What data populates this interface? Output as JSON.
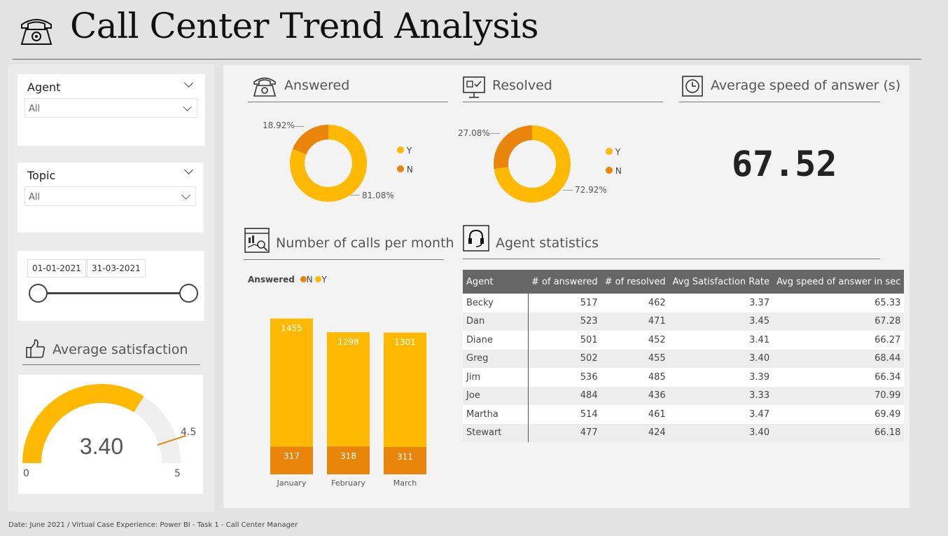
{
  "title": "Call Center Trend Analysis",
  "filters": {
    "agent": {
      "label": "Agent",
      "value": "All"
    },
    "topic": {
      "label": "Topic",
      "value": "All"
    },
    "date_range": {
      "start": "01-01-2021",
      "end": "31-03-2021"
    }
  },
  "satisfaction": {
    "title": "Average satisfaction",
    "value": "3.40",
    "min": "0",
    "max": "5",
    "target": "4.5",
    "fill_value": 3.4,
    "target_value": 4.5,
    "colors": {
      "fill": "#ffb900",
      "track": "#f0efef",
      "target": "#e8850a"
    }
  },
  "answered": {
    "title": "Answered",
    "pct_n": "18.92%",
    "pct_y": "81.08%",
    "legend": [
      "Y",
      "N"
    ]
  },
  "resolved": {
    "title": "Resolved",
    "pct_n": "27.08%",
    "pct_y": "72.92%",
    "legend": [
      "Y",
      "N"
    ]
  },
  "speed": {
    "title": "Average speed of answer (s)",
    "value": "67.52"
  },
  "calls": {
    "title": "Number of calls per month",
    "legend_title": "Answered",
    "legend": [
      "N",
      "Y"
    ]
  },
  "agent_stats": {
    "title": "Agent statistics",
    "columns": [
      "Agent",
      "# of answered",
      "# of resolved",
      "Avg Satisfaction Rate",
      "Avg speed of answer in sec"
    ],
    "rows": [
      [
        "Becky",
        "517",
        "462",
        "3.37",
        "65.33"
      ],
      [
        "Dan",
        "523",
        "471",
        "3.45",
        "67.28"
      ],
      [
        "Diane",
        "501",
        "452",
        "3.41",
        "66.27"
      ],
      [
        "Greg",
        "502",
        "455",
        "3.40",
        "68.44"
      ],
      [
        "Jim",
        "536",
        "485",
        "3.39",
        "66.34"
      ],
      [
        "Joe",
        "484",
        "436",
        "3.33",
        "70.99"
      ],
      [
        "Martha",
        "514",
        "461",
        "3.47",
        "69.49"
      ],
      [
        "Stewart",
        "477",
        "424",
        "3.40",
        "66.18"
      ]
    ]
  },
  "footer": "Date: June 2021 / Virtual Case Experience: Power BI - Task 1 - Call Center Manager",
  "colors": {
    "y": "#ffb900",
    "n": "#e8850a"
  },
  "chart_data": [
    {
      "type": "pie",
      "title": "Answered",
      "categories": [
        "Y",
        "N"
      ],
      "values": [
        81.08,
        18.92
      ]
    },
    {
      "type": "pie",
      "title": "Resolved",
      "categories": [
        "Y",
        "N"
      ],
      "values": [
        72.92,
        27.08
      ]
    },
    {
      "type": "bar",
      "title": "Number of calls per month",
      "categories": [
        "January",
        "February",
        "March"
      ],
      "series": [
        {
          "name": "N",
          "values": [
            317,
            318,
            311
          ]
        },
        {
          "name": "Y",
          "values": [
            1455,
            1298,
            1301
          ]
        }
      ],
      "stacked": true,
      "legend_title": "Answered",
      "legend": "top-left"
    }
  ]
}
